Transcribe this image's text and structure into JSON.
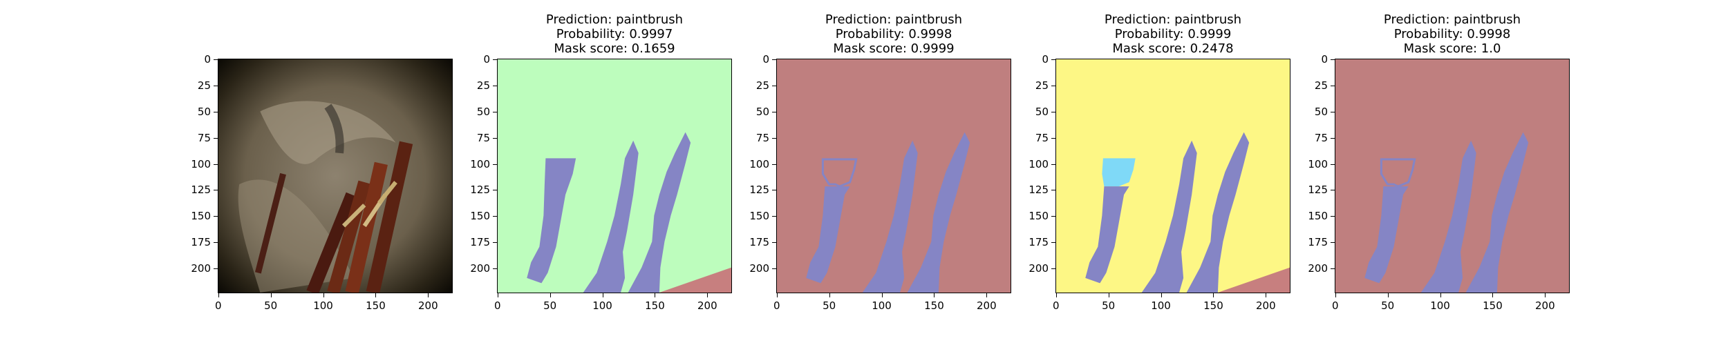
{
  "panels": [
    {
      "id": "input",
      "title": null
    },
    {
      "id": "mask-1",
      "title": {
        "prediction": "Prediction: paintbrush",
        "probability": "Probability: 0.9997",
        "score": "Mask score: 0.1659"
      },
      "background": "#bdfdbd"
    },
    {
      "id": "mask-2",
      "title": {
        "prediction": "Prediction: paintbrush",
        "probability": "Probability: 0.9998",
        "score": "Mask score: 0.9999"
      },
      "background": "#bf7f7f"
    },
    {
      "id": "mask-3",
      "title": {
        "prediction": "Prediction: paintbrush",
        "probability": "Probability: 0.9999",
        "score": "Mask score: 0.2478"
      },
      "background": "#fdf785"
    },
    {
      "id": "mask-4",
      "title": {
        "prediction": "Prediction: paintbrush",
        "probability": "Probability: 0.9998",
        "score": "Mask score: 1.0"
      },
      "background": "#bf7f7f"
    }
  ],
  "axes": {
    "yticks": [
      "0",
      "25",
      "50",
      "75",
      "100",
      "125",
      "150",
      "175",
      "200"
    ],
    "xticks": [
      "0",
      "50",
      "100",
      "150",
      "200"
    ]
  },
  "colors": {
    "brush_mask": "#8585c5",
    "tip_highlight": "#7fd9f7",
    "corner_region": "#c77f7f"
  }
}
